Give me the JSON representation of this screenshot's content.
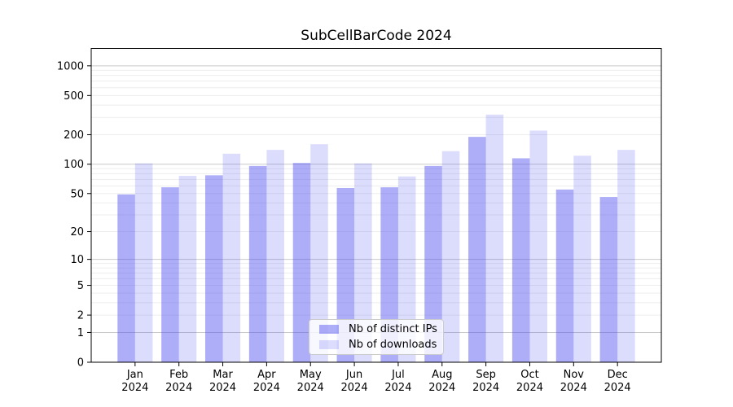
{
  "figure": {
    "background": "#ffffff"
  },
  "chart_data": {
    "type": "bar",
    "title": "SubCellBarCode 2024",
    "categories": [
      "Jan",
      "Feb",
      "Mar",
      "Apr",
      "May",
      "Jun",
      "Jul",
      "Aug",
      "Sep",
      "Oct",
      "Nov",
      "Dec"
    ],
    "x_year_label": "2024",
    "series": [
      {
        "name": "Nb of distinct IPs",
        "color": "#4444ee",
        "alpha": 0.44,
        "values": [
          49,
          58,
          77,
          96,
          103,
          57,
          58,
          96,
          190,
          115,
          55,
          46
        ]
      },
      {
        "name": "Nb of downloads",
        "color": "#4444ee",
        "alpha": 0.19,
        "values": [
          102,
          76,
          128,
          140,
          160,
          102,
          75,
          136,
          320,
          220,
          122,
          140
        ]
      }
    ],
    "y_scale": "log1p",
    "y_ticks": [
      0,
      1,
      2,
      5,
      10,
      20,
      50,
      100,
      200,
      500,
      1000
    ],
    "y_top": 1500,
    "grid": {
      "major_values": [
        1,
        10,
        100,
        1000
      ],
      "minor_decades": [
        1,
        10,
        100
      ],
      "major_color": "#c9c9c9",
      "minor_color": "#ededed"
    },
    "axis_color": "#000000",
    "tick_label_color": "#000000",
    "legend_position": "lower center"
  }
}
